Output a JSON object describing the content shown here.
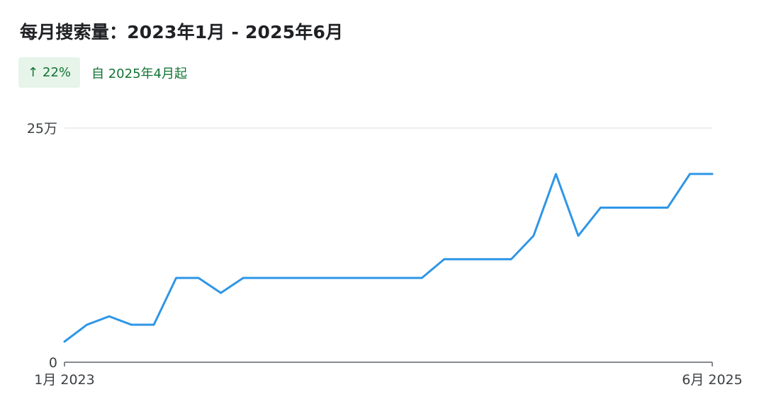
{
  "header": {
    "title": "每月搜索量：2023年1月 - 2025年6月",
    "change_value": "22%",
    "change_since": "自 2025年4月起",
    "change_direction_icon": "arrow-up-icon"
  },
  "colors": {
    "line": "#2f96e6",
    "badge_bg": "#e6f4ea",
    "positive": "#137333",
    "grid": "#dadce0",
    "axis": "#5f6368"
  },
  "chart_data": {
    "type": "line",
    "title": "每月搜索量：2023年1月 - 2025年6月",
    "xlabel": "",
    "ylabel": "",
    "x": [
      "2023-01",
      "2023-02",
      "2023-03",
      "2023-04",
      "2023-05",
      "2023-06",
      "2023-07",
      "2023-08",
      "2023-09",
      "2023-10",
      "2023-11",
      "2023-12",
      "2024-01",
      "2024-02",
      "2024-03",
      "2024-04",
      "2024-05",
      "2024-06",
      "2024-07",
      "2024-08",
      "2024-09",
      "2024-10",
      "2024-11",
      "2024-12",
      "2025-01",
      "2025-02",
      "2025-03",
      "2025-04",
      "2025-05",
      "2025-06"
    ],
    "series": [
      {
        "values": [
          22000,
          40000,
          49000,
          40000,
          40000,
          90000,
          90000,
          74000,
          90000,
          90000,
          90000,
          90000,
          90000,
          90000,
          90000,
          90000,
          90000,
          110000,
          110000,
          110000,
          110000,
          135000,
          201000,
          135000,
          165000,
          165000,
          165000,
          165000,
          201000,
          201000
        ]
      }
    ],
    "ylim": [
      0,
      250000
    ],
    "y_ticks": [
      {
        "value": 0,
        "label": "0"
      },
      {
        "value": 250000,
        "label": "25万"
      }
    ],
    "x_ticks": [
      {
        "index": 0,
        "label": "1月 2023"
      },
      {
        "index": 29,
        "label": "6月 2025"
      }
    ],
    "grid": true,
    "legend": "none"
  }
}
